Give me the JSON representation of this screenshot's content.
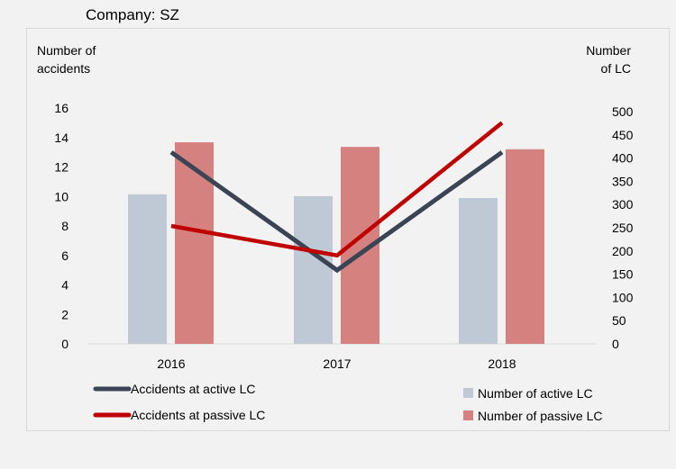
{
  "title": "Company: SZ",
  "chart_data": {
    "type": "bar+line",
    "title": "Company: SZ",
    "categories": [
      "2016",
      "2017",
      "2018"
    ],
    "ylabel_left": "Number of accidents",
    "ylabel_right": "Number of LC",
    "ylim_left": [
      0,
      16
    ],
    "ylim_right": [
      0,
      500
    ],
    "yticks_left": [
      "0",
      "2",
      "4",
      "6",
      "8",
      "10",
      "12",
      "14",
      "16"
    ],
    "yticks_right": [
      "0",
      "50",
      "100",
      "150",
      "200",
      "250",
      "300",
      "350",
      "400",
      "450",
      "500"
    ],
    "bar_series": [
      {
        "name": "Number of active LC",
        "axis": "right",
        "color": "#bfc9d5",
        "values": [
          322,
          318,
          314
        ]
      },
      {
        "name": "Number of passive LC",
        "axis": "right",
        "color": "#d48180",
        "values": [
          434,
          424,
          419
        ]
      }
    ],
    "line_series": [
      {
        "name": "Accidents at active LC",
        "axis": "left",
        "color": "#3a4454",
        "values": [
          13,
          5,
          13
        ]
      },
      {
        "name": "Accidents at passive LC",
        "axis": "left",
        "color": "#c00000",
        "values": [
          8,
          6,
          15
        ]
      }
    ],
    "legend": "bottom"
  }
}
